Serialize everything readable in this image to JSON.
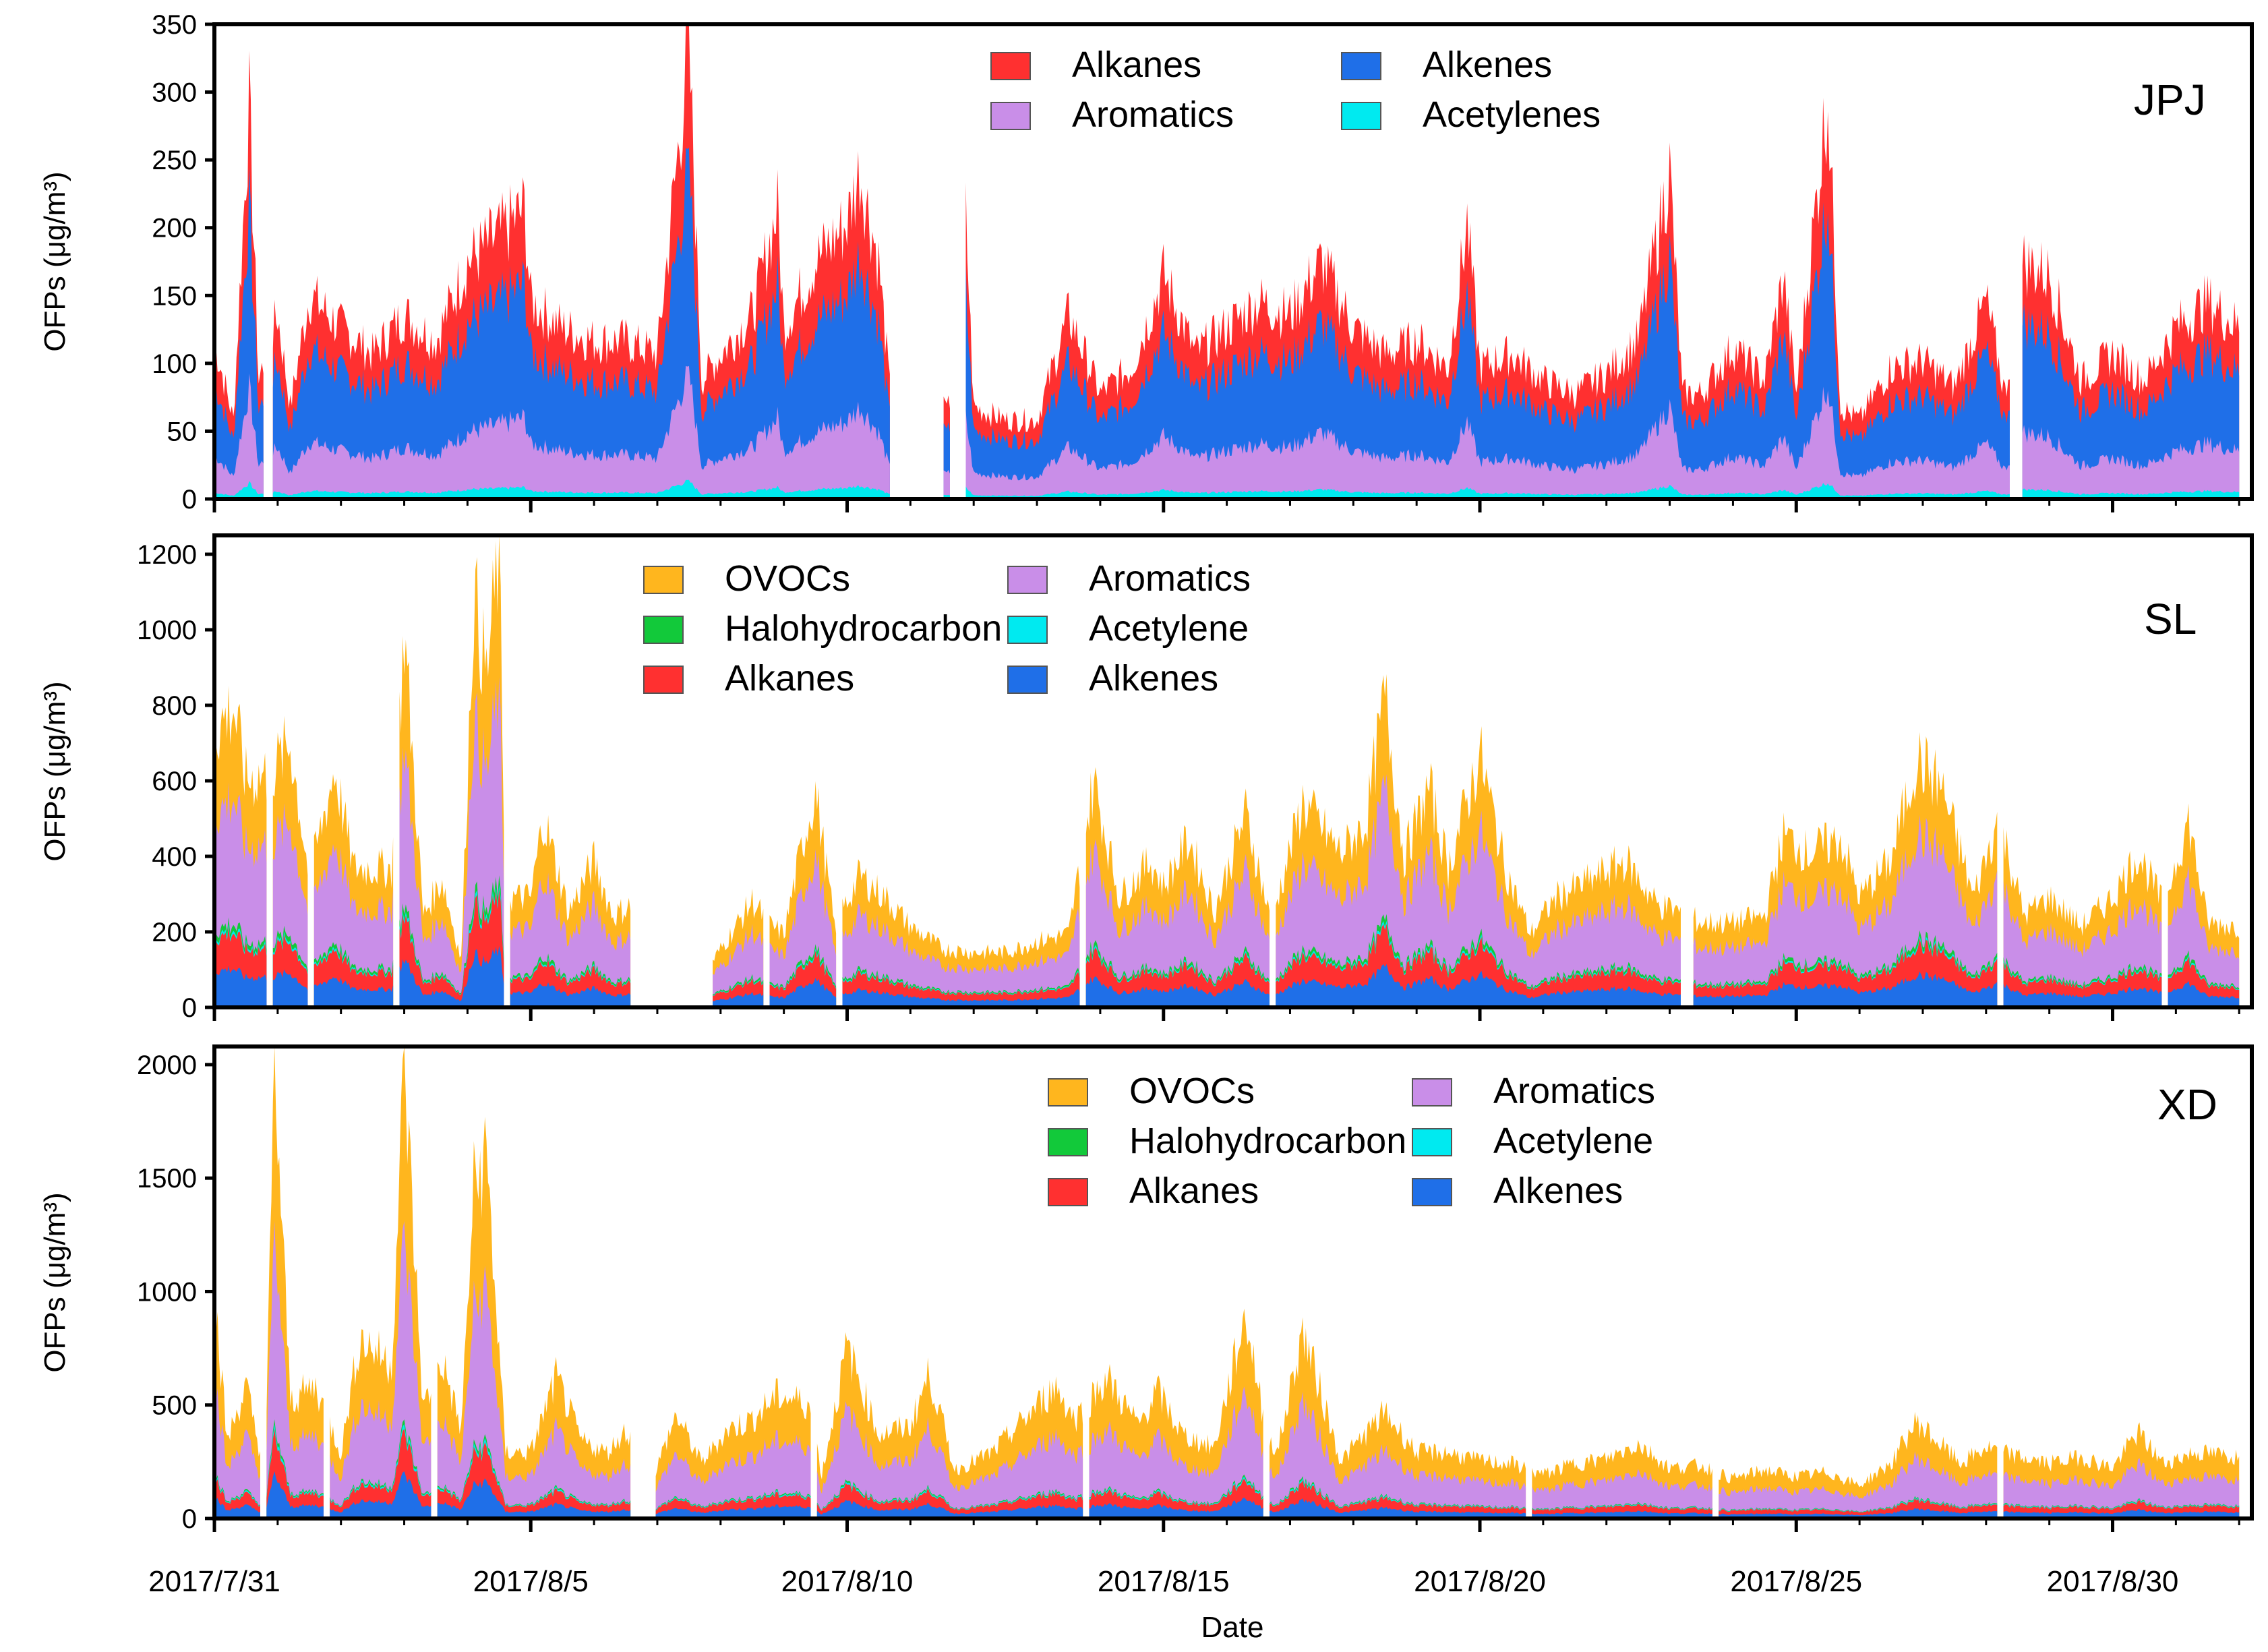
{
  "xaxis": {
    "label": "Date",
    "start_day": 0,
    "end_day": 32.2,
    "ticks": [
      {
        "day": 0,
        "label": "2017/7/31"
      },
      {
        "day": 5,
        "label": "2017/8/5"
      },
      {
        "day": 10,
        "label": "2017/8/10"
      },
      {
        "day": 15,
        "label": "2017/8/15"
      },
      {
        "day": 20,
        "label": "2017/8/20"
      },
      {
        "day": 25,
        "label": "2017/8/25"
      },
      {
        "day": 30,
        "label": "2017/8/30"
      }
    ]
  },
  "colors": {
    "Alkanes": "#ff3030",
    "Alkenes": "#1f6fe8",
    "Aromatics": "#c98ee8",
    "Acetylenes": "#00eaf0",
    "Acetylene": "#00eaf0",
    "OVOCs": "#ffb61e",
    "Halohydrocarbon": "#12c93a"
  },
  "chart_data": [
    {
      "station": "JPJ",
      "type": "area",
      "stacked": true,
      "ylabel": "OFPs (μg/m³)",
      "ylim": [
        0,
        350
      ],
      "yticks": [
        0,
        50,
        100,
        150,
        200,
        250,
        300,
        350
      ],
      "legend": [
        "Alkanes",
        "Alkenes",
        "Aromatics",
        "Acetylenes"
      ],
      "stack_order": [
        "Acetylenes",
        "Aromatics",
        "Alkenes",
        "Alkanes"
      ],
      "gaps": [
        [
          10.7,
          11.5
        ],
        [
          11.65,
          11.85
        ],
        [
          28.4,
          28.55
        ],
        [
          0.8,
          0.9
        ]
      ],
      "total_profile": [
        [
          0,
          120
        ],
        [
          0.3,
          60
        ],
        [
          0.55,
          300
        ],
        [
          0.7,
          90
        ],
        [
          1,
          140
        ],
        [
          1.2,
          70
        ],
        [
          1.5,
          155
        ],
        [
          2,
          130
        ],
        [
          2.5,
          110
        ],
        [
          3,
          140
        ],
        [
          3.5,
          120
        ],
        [
          4,
          180
        ],
        [
          4.5,
          200
        ],
        [
          4.9,
          220
        ],
        [
          5,
          150
        ],
        [
          5.5,
          130
        ],
        [
          6,
          120
        ],
        [
          6.5,
          120
        ],
        [
          7,
          110
        ],
        [
          7.5,
          345
        ],
        [
          7.7,
          90
        ],
        [
          8,
          110
        ],
        [
          8.5,
          140
        ],
        [
          8.9,
          220
        ],
        [
          9,
          130
        ],
        [
          9.5,
          180
        ],
        [
          10,
          210
        ],
        [
          10.2,
          250
        ],
        [
          10.5,
          180
        ],
        [
          10.7,
          70
        ],
        [
          11.5,
          90
        ],
        [
          11.65,
          60
        ],
        [
          11.85,
          245
        ],
        [
          12,
          70
        ],
        [
          12.5,
          60
        ],
        [
          13,
          60
        ],
        [
          13.5,
          140
        ],
        [
          14,
          80
        ],
        [
          14.5,
          100
        ],
        [
          15,
          170
        ],
        [
          15.5,
          110
        ],
        [
          16,
          130
        ],
        [
          16.5,
          150
        ],
        [
          17,
          140
        ],
        [
          17.5,
          180
        ],
        [
          18,
          130
        ],
        [
          18.5,
          110
        ],
        [
          19,
          120
        ],
        [
          19.5,
          100
        ],
        [
          19.8,
          210
        ],
        [
          20,
          100
        ],
        [
          20.5,
          110
        ],
        [
          21,
          90
        ],
        [
          21.5,
          80
        ],
        [
          22,
          95
        ],
        [
          22.5,
          120
        ],
        [
          23,
          250
        ],
        [
          23.2,
          80
        ],
        [
          23.5,
          80
        ],
        [
          24,
          115
        ],
        [
          24.5,
          90
        ],
        [
          24.8,
          170
        ],
        [
          25,
          80
        ],
        [
          25.5,
          310
        ],
        [
          25.7,
          70
        ],
        [
          26,
          60
        ],
        [
          26.5,
          100
        ],
        [
          27,
          105
        ],
        [
          27.5,
          85
        ],
        [
          28,
          150
        ],
        [
          28.3,
          80
        ],
        [
          28.6,
          180
        ],
        [
          29,
          170
        ],
        [
          29.5,
          90
        ],
        [
          30,
          110
        ],
        [
          30.5,
          90
        ],
        [
          31,
          130
        ],
        [
          31.5,
          150
        ],
        [
          32,
          130
        ]
      ],
      "fractions": {
        "Acetylenes": 0.04,
        "Aromatics": 0.24,
        "Alkenes": 0.46,
        "Alkanes": 0.26
      }
    },
    {
      "station": "SL",
      "type": "area",
      "stacked": true,
      "ylabel": "OFPs (μg/m³)",
      "ylim": [
        0,
        1250
      ],
      "yticks": [
        0,
        200,
        400,
        600,
        800,
        1000,
        1200
      ],
      "legend": [
        "OVOCs",
        "Aromatics",
        "Halohydrocarbon",
        "Acetylene",
        "Alkanes",
        "Alkenes"
      ],
      "stack_order": [
        "Alkenes",
        "Alkanes",
        "Acetylene",
        "Halohydrocarbon",
        "Aromatics",
        "OVOCs"
      ],
      "gaps": [
        [
          6.6,
          7.85
        ],
        [
          0.85,
          0.9
        ],
        [
          1.5,
          1.55
        ],
        [
          2.85,
          2.9
        ],
        [
          4.6,
          4.65
        ],
        [
          8.7,
          8.75
        ],
        [
          9.85,
          9.9
        ],
        [
          13.7,
          13.75
        ],
        [
          16.7,
          16.75
        ],
        [
          23.2,
          23.35
        ],
        [
          28.2,
          28.25
        ],
        [
          30.8,
          30.85
        ]
      ],
      "total_profile": [
        [
          0,
          750
        ],
        [
          0.3,
          820
        ],
        [
          0.5,
          620
        ],
        [
          0.9,
          640
        ],
        [
          1.2,
          720
        ],
        [
          1.5,
          350
        ],
        [
          1.9,
          650
        ],
        [
          2.2,
          380
        ],
        [
          2.8,
          380
        ],
        [
          3,
          1030
        ],
        [
          3.3,
          250
        ],
        [
          3.6,
          350
        ],
        [
          3.9,
          130
        ],
        [
          4.1,
          1130
        ],
        [
          4.3,
          900
        ],
        [
          4.5,
          1240
        ],
        [
          4.6,
          300
        ],
        [
          5,
          300
        ],
        [
          5.2,
          520
        ],
        [
          5.6,
          260
        ],
        [
          6,
          400
        ],
        [
          6.3,
          250
        ],
        [
          6.6,
          280
        ],
        [
          7.85,
          120
        ],
        [
          8.2,
          210
        ],
        [
          8.5,
          290
        ],
        [
          8.8,
          220
        ],
        [
          9,
          200
        ],
        [
          9.3,
          450
        ],
        [
          9.5,
          590
        ],
        [
          9.8,
          220
        ],
        [
          10.2,
          360
        ],
        [
          10.6,
          300
        ],
        [
          11,
          220
        ],
        [
          11.5,
          160
        ],
        [
          12,
          150
        ],
        [
          12.5,
          150
        ],
        [
          13,
          180
        ],
        [
          13.5,
          200
        ],
        [
          13.9,
          620
        ],
        [
          14.3,
          300
        ],
        [
          14.8,
          400
        ],
        [
          15,
          330
        ],
        [
          15.4,
          460
        ],
        [
          15.8,
          260
        ],
        [
          16.3,
          530
        ],
        [
          16.7,
          230
        ],
        [
          17.2,
          560
        ],
        [
          17.8,
          420
        ],
        [
          18.2,
          500
        ],
        [
          18.5,
          850
        ],
        [
          18.8,
          410
        ],
        [
          19.2,
          600
        ],
        [
          19.5,
          380
        ],
        [
          20,
          690
        ],
        [
          20.4,
          380
        ],
        [
          20.8,
          200
        ],
        [
          21.2,
          300
        ],
        [
          21.8,
          350
        ],
        [
          22.3,
          400
        ],
        [
          22.8,
          280
        ],
        [
          23.2,
          260
        ],
        [
          23.5,
          230
        ],
        [
          24,
          230
        ],
        [
          24.5,
          250
        ],
        [
          24.8,
          470
        ],
        [
          25.2,
          420
        ],
        [
          25.7,
          460
        ],
        [
          26,
          300
        ],
        [
          26.5,
          400
        ],
        [
          26.9,
          680
        ],
        [
          27.3,
          600
        ],
        [
          27.8,
          300
        ],
        [
          28.2,
          520
        ],
        [
          28.6,
          250
        ],
        [
          29,
          300
        ],
        [
          29.5,
          220
        ],
        [
          30,
          300
        ],
        [
          30.4,
          420
        ],
        [
          30.8,
          280
        ],
        [
          31.2,
          510
        ],
        [
          31.5,
          230
        ],
        [
          32,
          220
        ]
      ],
      "fractions": {
        "Alkenes": 0.13,
        "Alkanes": 0.12,
        "Acetylene": 0.01,
        "Halohydrocarbon": 0.02,
        "Aromatics": 0.42,
        "OVOCs": 0.3
      }
    },
    {
      "station": "XD",
      "type": "area",
      "stacked": true,
      "ylabel": "OFPs (μg/m³)",
      "ylim": [
        0,
        2080
      ],
      "yticks": [
        0,
        500,
        1000,
        1500,
        2000
      ],
      "legend": [
        "OVOCs",
        "Aromatics",
        "Halohydrocarbon",
        "Acetylene",
        "Alkanes",
        "Alkenes"
      ],
      "stack_order": [
        "Alkenes",
        "Alkanes",
        "Acetylene",
        "Halohydrocarbon",
        "Aromatics",
        "OVOCs"
      ],
      "gaps": [
        [
          0.75,
          0.8
        ],
        [
          1.75,
          1.8
        ],
        [
          3.45,
          3.5
        ],
        [
          6.6,
          6.95
        ],
        [
          9.45,
          9.5
        ],
        [
          13.75,
          13.8
        ],
        [
          16.6,
          16.65
        ],
        [
          20.75,
          20.8
        ],
        [
          23.7,
          23.75
        ],
        [
          28.2,
          28.25
        ]
      ],
      "total_profile": [
        [
          0,
          1040
        ],
        [
          0.2,
          350
        ],
        [
          0.5,
          600
        ],
        [
          0.8,
          200
        ],
        [
          0.95,
          2030
        ],
        [
          1.2,
          540
        ],
        [
          1.6,
          600
        ],
        [
          2,
          300
        ],
        [
          2.3,
          820
        ],
        [
          2.8,
          700
        ],
        [
          3,
          2060
        ],
        [
          3.3,
          500
        ],
        [
          3.6,
          720
        ],
        [
          3.9,
          400
        ],
        [
          4.1,
          1500
        ],
        [
          4.3,
          1650
        ],
        [
          4.6,
          300
        ],
        [
          5,
          300
        ],
        [
          5.4,
          640
        ],
        [
          5.8,
          350
        ],
        [
          6.2,
          300
        ],
        [
          6.5,
          400
        ],
        [
          6.95,
          200
        ],
        [
          7.3,
          470
        ],
        [
          7.7,
          250
        ],
        [
          8.1,
          400
        ],
        [
          8.5,
          450
        ],
        [
          8.9,
          560
        ],
        [
          9.4,
          520
        ],
        [
          9.6,
          200
        ],
        [
          10,
          780
        ],
        [
          10.5,
          380
        ],
        [
          11,
          420
        ],
        [
          11.3,
          660
        ],
        [
          11.7,
          220
        ],
        [
          12.3,
          300
        ],
        [
          12.8,
          450
        ],
        [
          13.3,
          600
        ],
        [
          13.6,
          450
        ],
        [
          14.1,
          640
        ],
        [
          14.6,
          420
        ],
        [
          14.9,
          580
        ],
        [
          15.3,
          380
        ],
        [
          15.8,
          320
        ],
        [
          16.3,
          930
        ],
        [
          16.6,
          420
        ],
        [
          16.8,
          300
        ],
        [
          17.2,
          850
        ],
        [
          17.5,
          560
        ],
        [
          17.8,
          260
        ],
        [
          18.5,
          480
        ],
        [
          19,
          300
        ],
        [
          19.5,
          300
        ],
        [
          20,
          260
        ],
        [
          20.5,
          250
        ],
        [
          21,
          200
        ],
        [
          21.5,
          250
        ],
        [
          22,
          270
        ],
        [
          22.5,
          340
        ],
        [
          23,
          230
        ],
        [
          23.5,
          240
        ],
        [
          24,
          180
        ],
        [
          24.5,
          220
        ],
        [
          25,
          190
        ],
        [
          25.5,
          210
        ],
        [
          26,
          150
        ],
        [
          26.5,
          250
        ],
        [
          26.9,
          440
        ],
        [
          27.3,
          330
        ],
        [
          27.6,
          250
        ],
        [
          28,
          320
        ],
        [
          28.5,
          280
        ],
        [
          29,
          250
        ],
        [
          29.5,
          280
        ],
        [
          30,
          230
        ],
        [
          30.4,
          390
        ],
        [
          30.8,
          250
        ],
        [
          31.3,
          300
        ],
        [
          32,
          280
        ]
      ],
      "fractions": {
        "Alkenes": 0.1,
        "Alkanes": 0.09,
        "Acetylene": 0.01,
        "Halohydrocarbon": 0.01,
        "Aromatics": 0.42,
        "OVOCs": 0.37
      }
    }
  ]
}
